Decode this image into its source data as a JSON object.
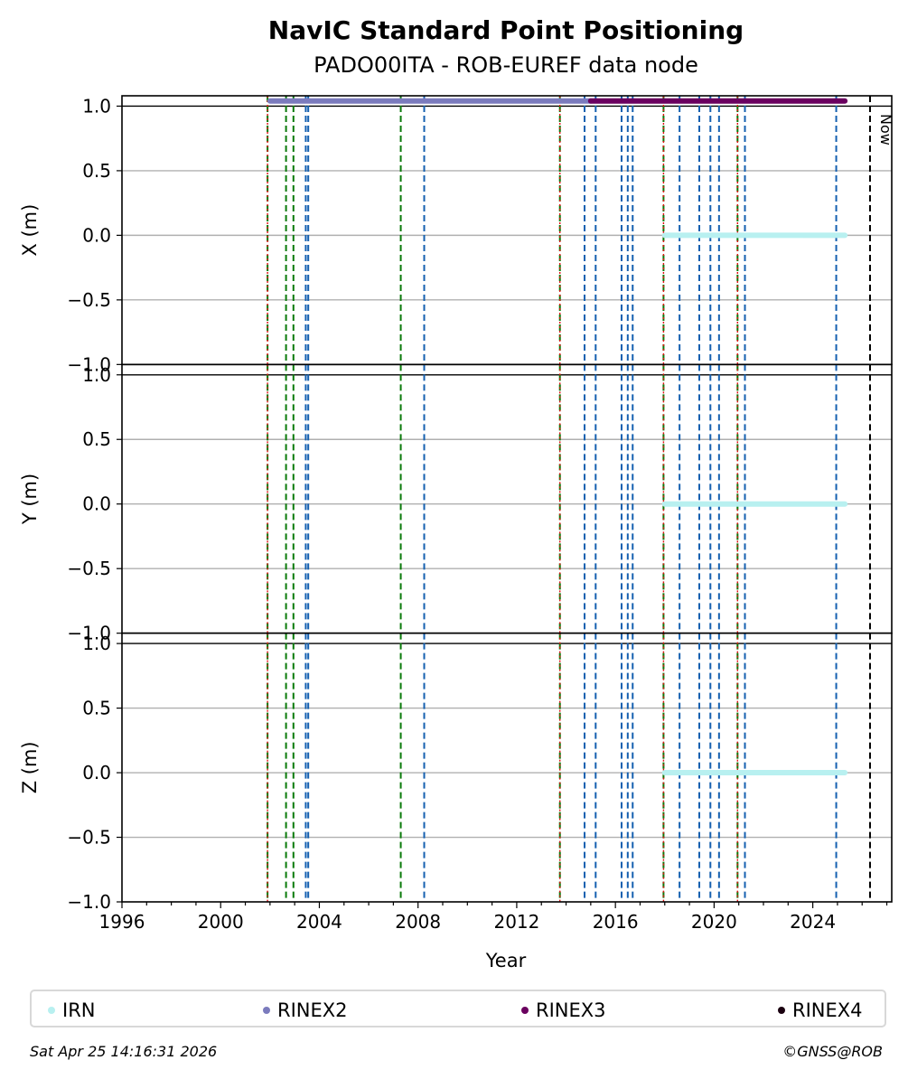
{
  "chart_data": {
    "type": "scatter",
    "title": "NavIC Standard Point Positioning",
    "subtitle": "PADO00ITA - ROB-EUREF data node",
    "xlabel": "Year",
    "xlim": [
      1996,
      2027.2
    ],
    "x_ticks": [
      "1996",
      "2000",
      "2004",
      "2008",
      "2012",
      "2016",
      "2020",
      "2024"
    ],
    "now_label": "Now",
    "now_x": 2026.32,
    "panels": [
      {
        "ylabel": "X (m)",
        "ylim": [
          -1.0,
          1.08
        ],
        "y_ticks": [
          "−1.0",
          "−0.5",
          "0.0",
          "0.5",
          "1.0"
        ]
      },
      {
        "ylabel": "Y (m)",
        "ylim": [
          -1.0,
          1.08
        ],
        "y_ticks": [
          "−1.0",
          "−0.5",
          "0.0",
          "0.5",
          "1.0"
        ]
      },
      {
        "ylabel": "Z (m)",
        "ylim": [
          -1.0,
          1.08
        ],
        "y_ticks": [
          "−1.0",
          "−0.5",
          "0.0",
          "0.5",
          "1.0"
        ]
      }
    ],
    "grid": true,
    "series": [
      {
        "name": "IRN",
        "color": "#b8f0f0",
        "x_range": [
          2018.0,
          2025.3
        ],
        "y": 0.0
      },
      {
        "name": "RINEX2",
        "color": "#7b7bbd",
        "x_range": [
          2002.0,
          2015.0
        ],
        "y": 1.04
      },
      {
        "name": "RINEX3",
        "color": "#6a005f",
        "x_range": [
          2015.0,
          2025.3
        ],
        "y": 1.04
      },
      {
        "name": "RINEX4",
        "color": "#1a0010",
        "x_range": [],
        "y": 1.04
      }
    ],
    "event_lines": {
      "red_dotted": [
        2001.9,
        2013.75,
        2017.95,
        2020.95
      ],
      "green_dashed": [
        2001.9,
        2002.65,
        2002.95,
        2007.3,
        2013.75,
        2017.95,
        2020.95
      ],
      "blue_dashed": [
        2003.45,
        2003.55,
        2008.25,
        2014.75,
        2015.2,
        2016.25,
        2016.5,
        2016.7,
        2018.6,
        2019.4,
        2019.85,
        2020.2,
        2021.25,
        2024.95
      ]
    },
    "legend_position": "bottom"
  },
  "footer": {
    "timestamp": "Sat Apr 25 14:16:31 2026",
    "credit": "©GNSS@ROB"
  }
}
